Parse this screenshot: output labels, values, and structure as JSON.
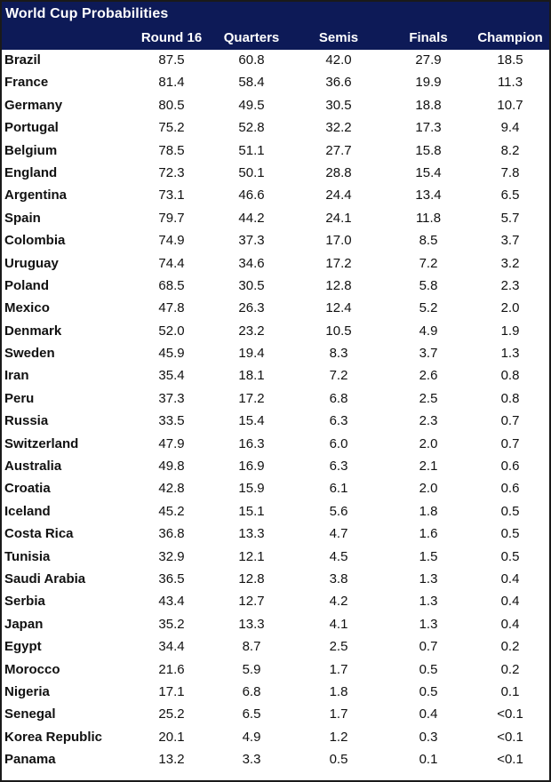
{
  "chart_data": {
    "type": "table",
    "title": "World Cup Probabilities",
    "columns": [
      "Round 16",
      "Quarters",
      "Semis",
      "Finals",
      "Champion"
    ],
    "rows": [
      {
        "team": "Brazil",
        "values": [
          "87.5",
          "60.8",
          "42.0",
          "27.9",
          "18.5"
        ]
      },
      {
        "team": "France",
        "values": [
          "81.4",
          "58.4",
          "36.6",
          "19.9",
          "11.3"
        ]
      },
      {
        "team": "Germany",
        "values": [
          "80.5",
          "49.5",
          "30.5",
          "18.8",
          "10.7"
        ]
      },
      {
        "team": "Portugal",
        "values": [
          "75.2",
          "52.8",
          "32.2",
          "17.3",
          "9.4"
        ]
      },
      {
        "team": "Belgium",
        "values": [
          "78.5",
          "51.1",
          "27.7",
          "15.8",
          "8.2"
        ]
      },
      {
        "team": "England",
        "values": [
          "72.3",
          "50.1",
          "28.8",
          "15.4",
          "7.8"
        ]
      },
      {
        "team": "Argentina",
        "values": [
          "73.1",
          "46.6",
          "24.4",
          "13.4",
          "6.5"
        ]
      },
      {
        "team": "Spain",
        "values": [
          "79.7",
          "44.2",
          "24.1",
          "11.8",
          "5.7"
        ]
      },
      {
        "team": "Colombia",
        "values": [
          "74.9",
          "37.3",
          "17.0",
          "8.5",
          "3.7"
        ]
      },
      {
        "team": "Uruguay",
        "values": [
          "74.4",
          "34.6",
          "17.2",
          "7.2",
          "3.2"
        ]
      },
      {
        "team": "Poland",
        "values": [
          "68.5",
          "30.5",
          "12.8",
          "5.8",
          "2.3"
        ]
      },
      {
        "team": "Mexico",
        "values": [
          "47.8",
          "26.3",
          "12.4",
          "5.2",
          "2.0"
        ]
      },
      {
        "team": "Denmark",
        "values": [
          "52.0",
          "23.2",
          "10.5",
          "4.9",
          "1.9"
        ]
      },
      {
        "team": "Sweden",
        "values": [
          "45.9",
          "19.4",
          "8.3",
          "3.7",
          "1.3"
        ]
      },
      {
        "team": "Iran",
        "values": [
          "35.4",
          "18.1",
          "7.2",
          "2.6",
          "0.8"
        ]
      },
      {
        "team": "Peru",
        "values": [
          "37.3",
          "17.2",
          "6.8",
          "2.5",
          "0.8"
        ]
      },
      {
        "team": "Russia",
        "values": [
          "33.5",
          "15.4",
          "6.3",
          "2.3",
          "0.7"
        ]
      },
      {
        "team": "Switzerland",
        "values": [
          "47.9",
          "16.3",
          "6.0",
          "2.0",
          "0.7"
        ]
      },
      {
        "team": "Australia",
        "values": [
          "49.8",
          "16.9",
          "6.3",
          "2.1",
          "0.6"
        ]
      },
      {
        "team": "Croatia",
        "values": [
          "42.8",
          "15.9",
          "6.1",
          "2.0",
          "0.6"
        ]
      },
      {
        "team": "Iceland",
        "values": [
          "45.2",
          "15.1",
          "5.6",
          "1.8",
          "0.5"
        ]
      },
      {
        "team": "Costa Rica",
        "values": [
          "36.8",
          "13.3",
          "4.7",
          "1.6",
          "0.5"
        ]
      },
      {
        "team": "Tunisia",
        "values": [
          "32.9",
          "12.1",
          "4.5",
          "1.5",
          "0.5"
        ]
      },
      {
        "team": "Saudi Arabia",
        "values": [
          "36.5",
          "12.8",
          "3.8",
          "1.3",
          "0.4"
        ]
      },
      {
        "team": "Serbia",
        "values": [
          "43.4",
          "12.7",
          "4.2",
          "1.3",
          "0.4"
        ]
      },
      {
        "team": "Japan",
        "values": [
          "35.2",
          "13.3",
          "4.1",
          "1.3",
          "0.4"
        ]
      },
      {
        "team": "Egypt",
        "values": [
          "34.4",
          "8.7",
          "2.5",
          "0.7",
          "0.2"
        ]
      },
      {
        "team": "Morocco",
        "values": [
          "21.6",
          "5.9",
          "1.7",
          "0.5",
          "0.2"
        ]
      },
      {
        "team": "Nigeria",
        "values": [
          "17.1",
          "6.8",
          "1.8",
          "0.5",
          "0.1"
        ]
      },
      {
        "team": "Senegal",
        "values": [
          "25.2",
          "6.5",
          "1.7",
          "0.4",
          "<0.1"
        ]
      },
      {
        "team": "Korea Republic",
        "values": [
          "20.1",
          "4.9",
          "1.2",
          "0.3",
          "<0.1"
        ]
      },
      {
        "team": "Panama",
        "values": [
          "13.2",
          "3.3",
          "0.5",
          "0.1",
          "<0.1"
        ]
      }
    ],
    "colors": {
      "header_bg": "#0d1a57",
      "header_text": "#ffffff",
      "body_text": "#111111"
    }
  }
}
